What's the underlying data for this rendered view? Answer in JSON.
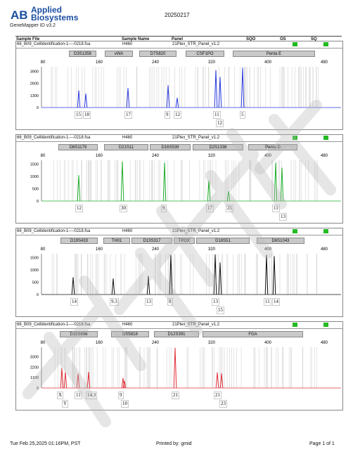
{
  "brand": {
    "line1": "Applied",
    "line2": "Biosystems",
    "logo_letters": "AB"
  },
  "version": "GeneMapper ID v3.2",
  "date": "20250217",
  "columns": {
    "sample_file": "Sample File",
    "sample_name": "Sample Name",
    "panel": "Panel",
    "sqo": "SQO",
    "os": "OS",
    "sq": "SQ"
  },
  "status_color": "#22bb22",
  "panels": [
    {
      "sample_file": "66_B09_CellIdentification-1----0218.fsa",
      "sample_name": "H460",
      "panel": "21Plex_STR_Panel_v1.2",
      "color": "#2a3bdc",
      "markers": [
        {
          "name": "D3S1358",
          "x0": 97,
          "x1": 136
        },
        {
          "name": "vWA",
          "x0": 148,
          "x1": 188
        },
        {
          "name": "D7S820",
          "x0": 197,
          "x1": 250
        },
        {
          "name": "CSF1PO",
          "x0": 263,
          "x1": 318
        },
        {
          "name": "Penta E",
          "x0": 330,
          "x1": 447
        }
      ],
      "yticks": [
        3900,
        2600,
        1300,
        0
      ],
      "ymax": 4400,
      "peaks": [
        {
          "x": 111,
          "h": 1850
        },
        {
          "x": 121,
          "h": 1500
        },
        {
          "x": 181,
          "h": 2100
        },
        {
          "x": 238,
          "h": 2400
        },
        {
          "x": 251,
          "h": 1050
        },
        {
          "x": 306,
          "h": 4050
        },
        {
          "x": 312,
          "h": 3300
        },
        {
          "x": 344,
          "h": 4300
        }
      ],
      "labels": [
        {
          "t": "15",
          "x": 110,
          "row": 0
        },
        {
          "t": "18",
          "x": 122,
          "row": 0
        },
        {
          "t": "17",
          "x": 181,
          "row": 0
        },
        {
          "t": "9",
          "x": 238,
          "row": 0
        },
        {
          "t": "12",
          "x": 251,
          "row": 0
        },
        {
          "t": "11",
          "x": 307,
          "row": 0
        },
        {
          "t": "5",
          "x": 345,
          "row": 0
        },
        {
          "t": "12",
          "x": 311,
          "row": 1
        }
      ]
    },
    {
      "sample_file": "66_B09_CellIdentification-1----0218.fsa",
      "sample_name": "H460",
      "panel": "21Plex_STR_Panel_v1.2",
      "color": "#1fae2b",
      "markers": [
        {
          "name": "D8S1179",
          "x0": 82,
          "x1": 138
        },
        {
          "name": "D21S11",
          "x0": 147,
          "x1": 210
        },
        {
          "name": "D16S539",
          "x0": 212,
          "x1": 270
        },
        {
          "name": "D2S1338",
          "x0": 273,
          "x1": 345
        },
        {
          "name": "Penta D",
          "x0": 352,
          "x1": 422
        }
      ],
      "yticks": [
        1500,
        1000,
        500,
        0
      ],
      "ymax": 1650,
      "peaks": [
        {
          "x": 111,
          "h": 1050
        },
        {
          "x": 173,
          "h": 1600
        },
        {
          "x": 233,
          "h": 1550
        },
        {
          "x": 296,
          "h": 820
        },
        {
          "x": 324,
          "h": 400
        },
        {
          "x": 391,
          "h": 1550
        },
        {
          "x": 400,
          "h": 1350
        }
      ],
      "labels": [
        {
          "t": "12",
          "x": 111,
          "row": 0
        },
        {
          "t": "30",
          "x": 174,
          "row": 0
        },
        {
          "t": "9",
          "x": 233,
          "row": 0
        },
        {
          "t": "17",
          "x": 297,
          "row": 0
        },
        {
          "t": "25",
          "x": 325,
          "row": 0
        },
        {
          "t": "11",
          "x": 391,
          "row": 0
        },
        {
          "t": "13",
          "x": 401,
          "row": 1
        }
      ]
    },
    {
      "sample_file": "66_B09_CellIdentification-1----0218.fsa",
      "sample_name": "H460",
      "panel": "21Plex_STR_Panel_v1.2",
      "color": "#111111",
      "markers": [
        {
          "name": "D19S433",
          "x0": 85,
          "x1": 138
        },
        {
          "name": "TH01",
          "x0": 146,
          "x1": 184
        },
        {
          "name": "D13S317",
          "x0": 186,
          "x1": 244
        },
        {
          "name": "TPOX",
          "x0": 246,
          "x1": 276
        },
        {
          "name": "D18S51",
          "x0": 278,
          "x1": 354
        },
        {
          "name": "D6S1043",
          "x0": 364,
          "x1": 432
        }
      ],
      "yticks": [
        1500,
        1000,
        500,
        0
      ],
      "ymax": 1650,
      "peaks": [
        {
          "x": 103,
          "h": 700
        },
        {
          "x": 160,
          "h": 650
        },
        {
          "x": 210,
          "h": 750
        },
        {
          "x": 242,
          "h": 1600
        },
        {
          "x": 305,
          "h": 1620
        },
        {
          "x": 312,
          "h": 1300
        },
        {
          "x": 378,
          "h": 1600
        },
        {
          "x": 389,
          "h": 1550
        }
      ],
      "labels": [
        {
          "t": "14",
          "x": 104,
          "row": 0
        },
        {
          "t": "9.3",
          "x": 160,
          "row": 0
        },
        {
          "t": "13",
          "x": 210,
          "row": 0
        },
        {
          "t": "8",
          "x": 242,
          "row": 0
        },
        {
          "t": "13",
          "x": 305,
          "row": 0
        },
        {
          "t": "11",
          "x": 379,
          "row": 0
        },
        {
          "t": "14",
          "x": 391,
          "row": 0
        },
        {
          "t": "15",
          "x": 312,
          "row": 1
        }
      ]
    },
    {
      "sample_file": "66_B09_CellIdentification-1----0218.fsa",
      "sample_name": "H460",
      "panel": "21Plex_STR_Panel_v1.2",
      "color": "#e0303a",
      "markers": [
        {
          "name": "D15S656",
          "x0": 84,
          "x1": 138
        },
        {
          "name": "D5S818",
          "x0": 157,
          "x1": 211
        },
        {
          "name": "D12S391",
          "x0": 218,
          "x1": 282
        },
        {
          "name": "FGA",
          "x0": 287,
          "x1": 430
        }
      ],
      "yticks": [
        3300,
        2200,
        1100,
        0
      ],
      "ymax": 4300,
      "peaks": [
        {
          "x": 87,
          "h": 2100
        },
        {
          "x": 92,
          "h": 1650
        },
        {
          "x": 110,
          "h": 1500
        },
        {
          "x": 125,
          "h": 1700
        },
        {
          "x": 174,
          "h": 1050
        },
        {
          "x": 176,
          "h": 750
        },
        {
          "x": 248,
          "h": 4250
        },
        {
          "x": 308,
          "h": 1650
        },
        {
          "x": 314,
          "h": 1550
        }
      ],
      "labels": [
        {
          "t": "X",
          "x": 85,
          "row": 0
        },
        {
          "t": "11",
          "x": 110,
          "row": 0
        },
        {
          "t": "14.3",
          "x": 126,
          "row": 0
        },
        {
          "t": "9",
          "x": 172,
          "row": 0
        },
        {
          "t": "21",
          "x": 248,
          "row": 0
        },
        {
          "t": "21",
          "x": 308,
          "row": 0
        },
        {
          "t": "Y",
          "x": 92,
          "row": 1
        },
        {
          "t": "10",
          "x": 176,
          "row": 1
        },
        {
          "t": "23",
          "x": 316,
          "row": 1
        }
      ]
    }
  ],
  "xticks": [
    80,
    160,
    240,
    320,
    400,
    480
  ],
  "footer": {
    "datetime": "Tue Feb 25,2025 01:16PM, PST",
    "printed_by": "Printed by: gmid",
    "page": "Page 1 of 1"
  }
}
